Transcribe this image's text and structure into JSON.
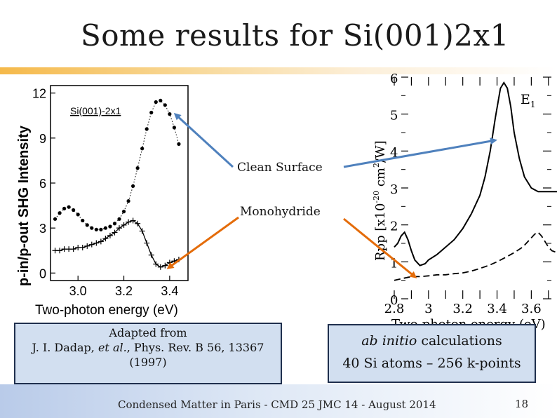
{
  "slide": {
    "title": "Some results for Si(001)2x1",
    "footer": "Condensed Matter in Paris - CMD 25 JMC 14 -  August 2014",
    "page_number": "18"
  },
  "labels": {
    "clean_surface": "Clean Surface",
    "monohydride": "Monohydride"
  },
  "left_plot": {
    "inset_label": "Si(001)-2x1",
    "ylabel": "p-in/p-out SHG Intensity",
    "xlabel": "Two-photon energy (eV)",
    "yticks": [
      "0",
      "3",
      "6",
      "9",
      "12"
    ],
    "xticks": [
      "3.0",
      "3.2",
      "3.4"
    ]
  },
  "right_plot": {
    "peak_label": "E",
    "peak_sub": "1",
    "ylabel_main": "Rpp [x10",
    "ylabel_exp1": "-20",
    "ylabel_mid": " cm",
    "ylabel_exp2": "2",
    "ylabel_end": "/W]",
    "xlabel": "Two-photon energy (eV)",
    "yticks": [
      "0",
      "1",
      "2",
      "3",
      "4",
      "5",
      "6"
    ],
    "xticks": [
      "2.8",
      "3",
      "3.2",
      "3.4",
      "3.6"
    ]
  },
  "reference_box": {
    "line1": "Adapted from",
    "line2_authors": "J. I. Dadap, ",
    "line2_etal": "et al.",
    "line2_rest": ", Phys. Rev. B 56, 13367",
    "line3": "(1997)"
  },
  "calc_box": {
    "line1_italic": "ab initio",
    "line1_rest": " calculations",
    "line2": "40 Si atoms – 256 k-points"
  },
  "colors": {
    "arrow_blue": "#4f81bd",
    "arrow_orange": "#e46c0a",
    "box_fill": "#d2dff0",
    "box_border": "#1f2f4d"
  },
  "chart_data": [
    {
      "type": "scatter",
      "title": "Si(001)-2x1",
      "xlabel": "Two-photon energy (eV)",
      "ylabel": "p-in/p-out SHG Intensity",
      "xlim": [
        2.88,
        3.48
      ],
      "ylim": [
        -0.5,
        12.5
      ],
      "series": [
        {
          "x": [
            2.9,
            2.92,
            2.94,
            2.96,
            2.98,
            3.0,
            3.02,
            3.04,
            3.06,
            3.08,
            3.1,
            3.12,
            3.14,
            3.16,
            3.18,
            3.2,
            3.22,
            3.24,
            3.26,
            3.28,
            3.3,
            3.32,
            3.34,
            3.36,
            3.38,
            3.4,
            3.42,
            3.44
          ],
          "values": [
            3.6,
            4.0,
            4.3,
            4.4,
            4.2,
            3.9,
            3.5,
            3.2,
            3.0,
            2.9,
            2.9,
            3.0,
            3.1,
            3.3,
            3.6,
            4.1,
            4.8,
            5.8,
            7.0,
            8.3,
            9.6,
            10.7,
            11.4,
            11.5,
            11.2,
            10.6,
            9.7,
            8.6
          ]
        },
        {
          "x": [
            2.9,
            2.92,
            2.94,
            2.96,
            2.98,
            3.0,
            3.02,
            3.04,
            3.06,
            3.08,
            3.1,
            3.12,
            3.14,
            3.16,
            3.18,
            3.2,
            3.22,
            3.24,
            3.26,
            3.28,
            3.3,
            3.32,
            3.34,
            3.36,
            3.38,
            3.4,
            3.42,
            3.44
          ],
          "values": [
            1.5,
            1.5,
            1.6,
            1.6,
            1.6,
            1.7,
            1.7,
            1.8,
            1.9,
            2.0,
            2.1,
            2.3,
            2.5,
            2.7,
            3.0,
            3.2,
            3.4,
            3.5,
            3.3,
            2.8,
            2.0,
            1.2,
            0.6,
            0.4,
            0.5,
            0.7,
            0.8,
            0.9
          ]
        }
      ]
    },
    {
      "type": "line",
      "title": "",
      "xlabel": "Two-photon energy (eV)",
      "ylabel": "Rpp [x10-20 cm2/W]",
      "xlim": [
        2.8,
        3.75
      ],
      "ylim": [
        0,
        6
      ],
      "series": [
        {
          "x": [
            2.8,
            2.82,
            2.84,
            2.86,
            2.88,
            2.9,
            2.92,
            2.95,
            2.98,
            3.0,
            3.05,
            3.1,
            3.15,
            3.2,
            3.25,
            3.3,
            3.33,
            3.36,
            3.39,
            3.42,
            3.44,
            3.46,
            3.48,
            3.5,
            3.53,
            3.56,
            3.6,
            3.64,
            3.68,
            3.72,
            3.75
          ],
          "values": [
            1.4,
            1.5,
            1.7,
            1.8,
            1.6,
            1.3,
            1.05,
            0.9,
            0.95,
            1.05,
            1.2,
            1.4,
            1.6,
            1.9,
            2.3,
            2.8,
            3.3,
            4.0,
            4.9,
            5.7,
            5.85,
            5.7,
            5.2,
            4.5,
            3.8,
            3.3,
            3.0,
            2.9,
            2.9,
            2.9,
            2.9
          ]
        },
        {
          "x": [
            2.8,
            2.85,
            2.9,
            2.95,
            3.0,
            3.05,
            3.1,
            3.15,
            3.2,
            3.25,
            3.3,
            3.35,
            3.4,
            3.45,
            3.5,
            3.55,
            3.6,
            3.62,
            3.64,
            3.66,
            3.68,
            3.7,
            3.72,
            3.75
          ],
          "values": [
            0.5,
            0.55,
            0.6,
            0.6,
            0.62,
            0.65,
            0.65,
            0.68,
            0.7,
            0.75,
            0.82,
            0.9,
            1.0,
            1.12,
            1.25,
            1.4,
            1.65,
            1.75,
            1.8,
            1.7,
            1.55,
            1.4,
            1.3,
            1.25
          ]
        }
      ]
    }
  ]
}
